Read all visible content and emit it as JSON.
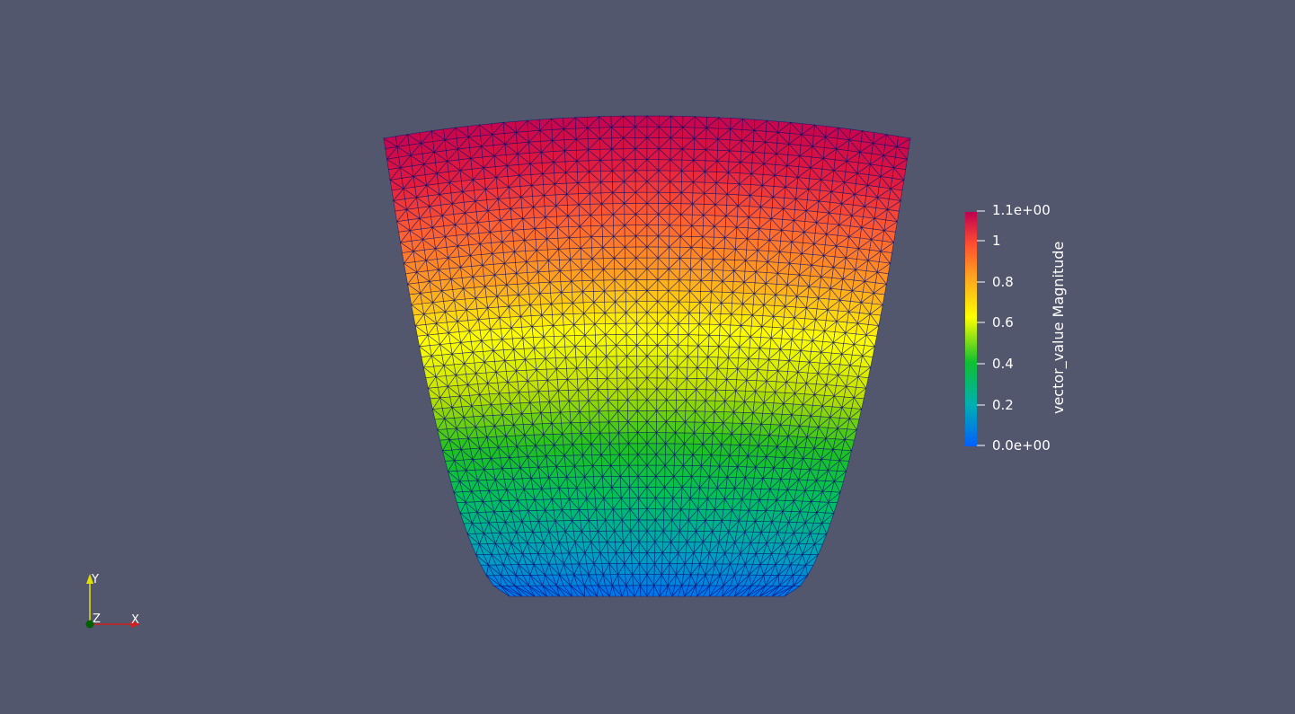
{
  "background_color": "#52576d",
  "mesh": {
    "edge_color": "#0a0f6e",
    "colormap": [
      "#0060ff",
      "#00a0c0",
      "#00c060",
      "#20c020",
      "#c0e000",
      "#ffff00",
      "#ffa020",
      "#ff6030",
      "#e01840",
      "#c00050"
    ]
  },
  "scalar_bar": {
    "title": "vector_value Magnitude",
    "range": [
      0.0,
      1.1
    ],
    "tick_labels": {
      "max": "1.1e+00",
      "t1": "1",
      "t08": "0.8",
      "t06": "0.6",
      "t04": "0.4",
      "t02": "0.2",
      "min": "0.0e+00"
    }
  },
  "axes": {
    "x_label": "X",
    "y_label": "Y",
    "z_label": "Z",
    "x_color": "#d02020",
    "y_color": "#e0e000",
    "z_color": "#006000"
  }
}
